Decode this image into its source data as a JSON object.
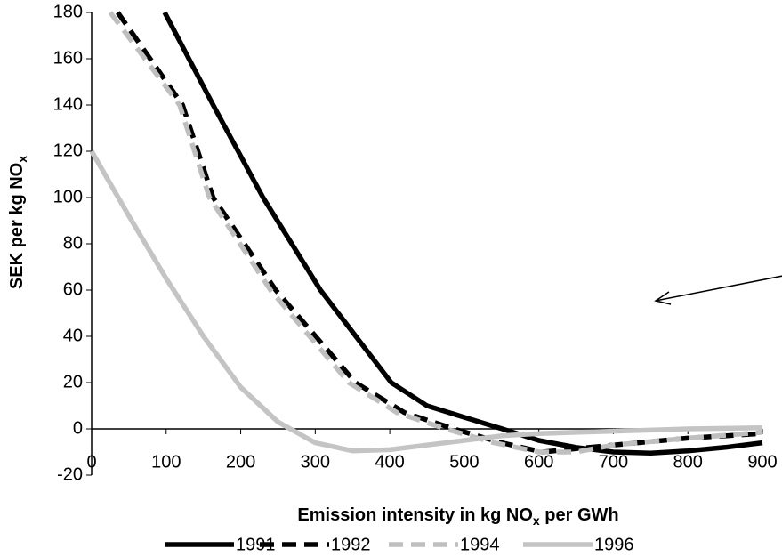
{
  "chart_data": {
    "type": "line",
    "x_label": [
      "Emission intensity  in kg NO",
      "x",
      " per GWh"
    ],
    "y_label": [
      "SEK per kg NO",
      "x"
    ],
    "xlim": [
      0,
      900
    ],
    "ylim": [
      -20,
      180
    ],
    "xticks": [
      0,
      100,
      200,
      300,
      400,
      500,
      600,
      700,
      800,
      900
    ],
    "yticks": [
      -20,
      0,
      20,
      40,
      60,
      80,
      100,
      120,
      140,
      160,
      180
    ],
    "series": [
      {
        "name": "1991",
        "color": "#000000",
        "dash": false,
        "x": [
          98,
          163,
          230,
          307,
          402,
          450,
          500,
          551,
          600,
          650,
          700,
          750,
          800,
          850,
          900
        ],
        "values": [
          180,
          140,
          100,
          60,
          20,
          10,
          5,
          0,
          -5,
          -8,
          -10,
          -10.5,
          -9.5,
          -8,
          -6
        ]
      },
      {
        "name": "1992",
        "color": "#000000",
        "dash": true,
        "x": [
          35,
          122,
          163,
          247,
          354,
          420,
          486,
          550,
          605,
          700,
          800,
          900
        ],
        "values": [
          180,
          140,
          100,
          60,
          20,
          7,
          0,
          -6,
          -10,
          -7,
          -4,
          -2
        ]
      },
      {
        "name": "1994",
        "color": "#bfbfbf",
        "dash": true,
        "x": [
          25,
          118,
          158,
          240,
          345,
          410,
          475,
          540,
          600,
          650,
          700,
          800,
          900
        ],
        "values": [
          180,
          140,
          100,
          60,
          20,
          7,
          0,
          -6,
          -10,
          -10,
          -7,
          -4,
          -1.5
        ]
      },
      {
        "name": "1996",
        "color": "#c4c4c4",
        "dash": false,
        "x": [
          0,
          50,
          100,
          150,
          200,
          250,
          300,
          350,
          400,
          450,
          500,
          550,
          600,
          700,
          800,
          900
        ],
        "values": [
          120,
          92,
          65,
          40,
          18,
          3,
          -6,
          -9.5,
          -9,
          -7,
          -5,
          -3,
          -2,
          -1,
          0,
          0.5
        ]
      }
    ]
  }
}
